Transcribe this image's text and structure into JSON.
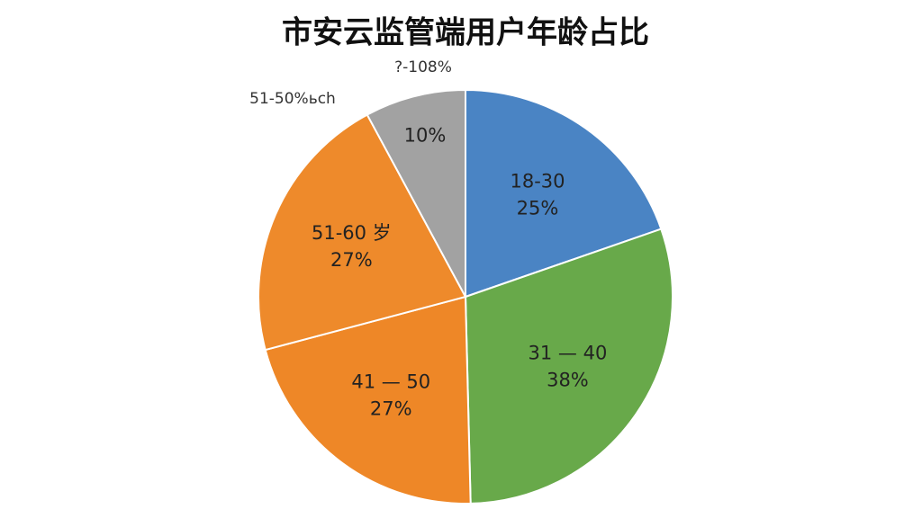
{
  "chart_data": {
    "type": "pie",
    "title": "市安云监管端用户年龄占比",
    "categories": [
      "18-30",
      "31 — 40",
      "41 — 50",
      "51-60 岁",
      null
    ],
    "values": [
      25,
      38,
      27,
      27,
      10
    ],
    "value_labels": [
      "25%",
      "38%",
      "27%",
      "27%",
      "10%"
    ],
    "colors": [
      "#4a84c4",
      "#68a94a",
      "#ee8727",
      "#ee8a2b",
      "#a2a2a2"
    ],
    "annotations": [
      "?-108%",
      "51-50%ьch"
    ]
  }
}
